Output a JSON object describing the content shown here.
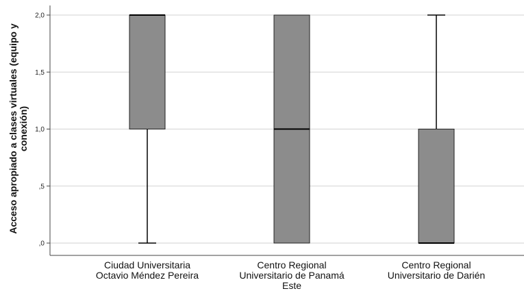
{
  "chart_data": {
    "type": "boxplot",
    "ylabel_lines": [
      "Acceso apropiado a clases virtuales (equipo y",
      "conexión)"
    ],
    "ylim": [
      0,
      2
    ],
    "yticks": [
      {
        "value": 0,
        "label": ",0"
      },
      {
        "value": 0.5,
        "label": ",5"
      },
      {
        "value": 1,
        "label": "1,0"
      },
      {
        "value": 1.5,
        "label": "1,5"
      },
      {
        "value": 2,
        "label": "2,0"
      }
    ],
    "grid": true,
    "box_color": "#8c8c8c",
    "categories": [
      {
        "label_lines": [
          "Ciudad Universitaria",
          "Octavio Méndez Pereira"
        ],
        "min": 0,
        "q1": 1,
        "median": 2,
        "q3": 2,
        "max": 2
      },
      {
        "label_lines": [
          "Centro Regional",
          "Universitario de Panamá",
          "Este"
        ],
        "min": 0,
        "q1": 0,
        "median": 1,
        "q3": 2,
        "max": 2
      },
      {
        "label_lines": [
          "Centro Regional",
          "Universitario de Darién"
        ],
        "min": 0,
        "q1": 0,
        "median": 0,
        "q3": 1,
        "max": 2
      }
    ]
  }
}
